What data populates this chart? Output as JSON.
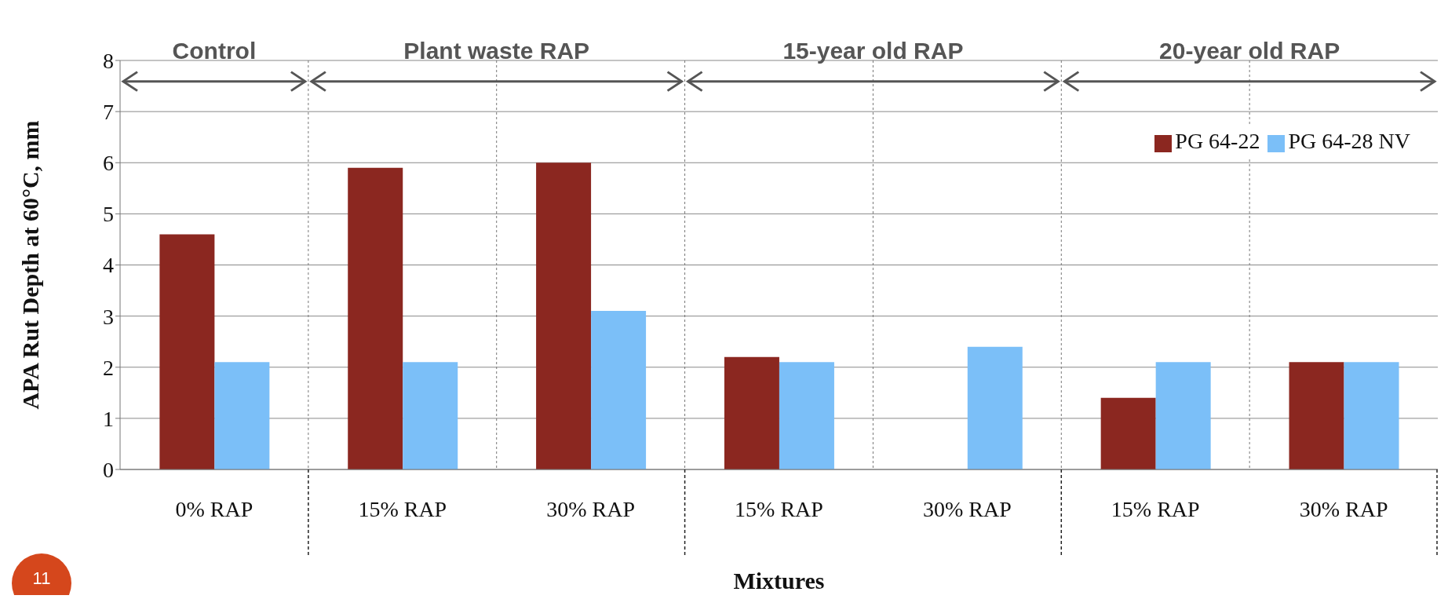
{
  "chart_data": {
    "type": "bar",
    "xlabel": "Mixtures",
    "ylabel": "APA Rut Depth at 60°C, mm",
    "categories": [
      "0% RAP",
      "15% RAP",
      "30% RAP",
      "15% RAP",
      "30% RAP",
      "15% RAP",
      "30% RAP"
    ],
    "series": [
      {
        "name": "PG 64-22",
        "color": "#8b2720",
        "values": [
          4.6,
          5.9,
          6.0,
          2.2,
          null,
          1.4,
          2.1
        ]
      },
      {
        "name": "PG 64-28 NV",
        "color": "#7bbff8",
        "values": [
          2.1,
          2.1,
          3.1,
          2.1,
          2.4,
          2.1,
          2.1
        ]
      }
    ],
    "ylim": [
      0,
      8
    ],
    "yticks": [
      0,
      1,
      2,
      3,
      4,
      5,
      6,
      7,
      8
    ],
    "grid": true,
    "legend": "top right",
    "annotations": [
      "Control",
      "Plant waste RAP",
      "15-year old RAP",
      "20-year old RAP",
      "11"
    ]
  }
}
